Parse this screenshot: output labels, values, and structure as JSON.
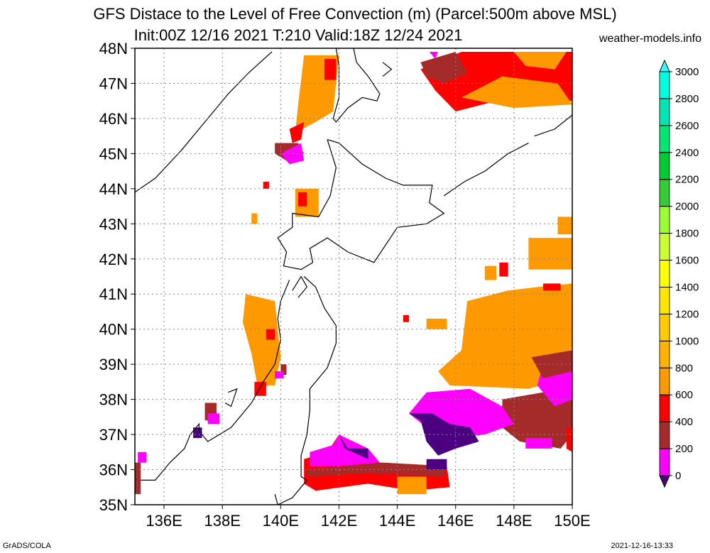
{
  "header": {
    "title_line1": "GFS Distace to the Level of Free Convection (m) (Parcel:500m above MSL)",
    "title_line2": "Init:00Z 12/16 2021 T:210 Valid:18Z 12/24 2021",
    "credit": "weather-models.info"
  },
  "footer": {
    "left": "GrADS/COLA",
    "right": "2021-12-16-13:33"
  },
  "map": {
    "lat_labels": [
      "48N",
      "47N",
      "46N",
      "45N",
      "44N",
      "43N",
      "42N",
      "41N",
      "40N",
      "39N",
      "38N",
      "37N",
      "36N",
      "35N"
    ],
    "lon_labels": [
      "136E",
      "138E",
      "140E",
      "142E",
      "144E",
      "146E",
      "148E",
      "150E"
    ],
    "lon_range": [
      135,
      150
    ],
    "lat_range": [
      35,
      48
    ]
  },
  "colorbar": {
    "levels": [
      "0",
      "200",
      "400",
      "600",
      "800",
      "1000",
      "1200",
      "1400",
      "1600",
      "1800",
      "2000",
      "2200",
      "2400",
      "2600",
      "2800",
      "3000"
    ],
    "colors": [
      "#4b0082",
      "#ff00ff",
      "#a52a2a",
      "#ff0000",
      "#ff9900",
      "#ffb300",
      "#ffcc00",
      "#ffe600",
      "#ffff00",
      "#ccff33",
      "#99ff33",
      "#33cc33",
      "#00cc33",
      "#00e673",
      "#00e6b3",
      "#00ffdd",
      "#33ffff"
    ]
  }
}
